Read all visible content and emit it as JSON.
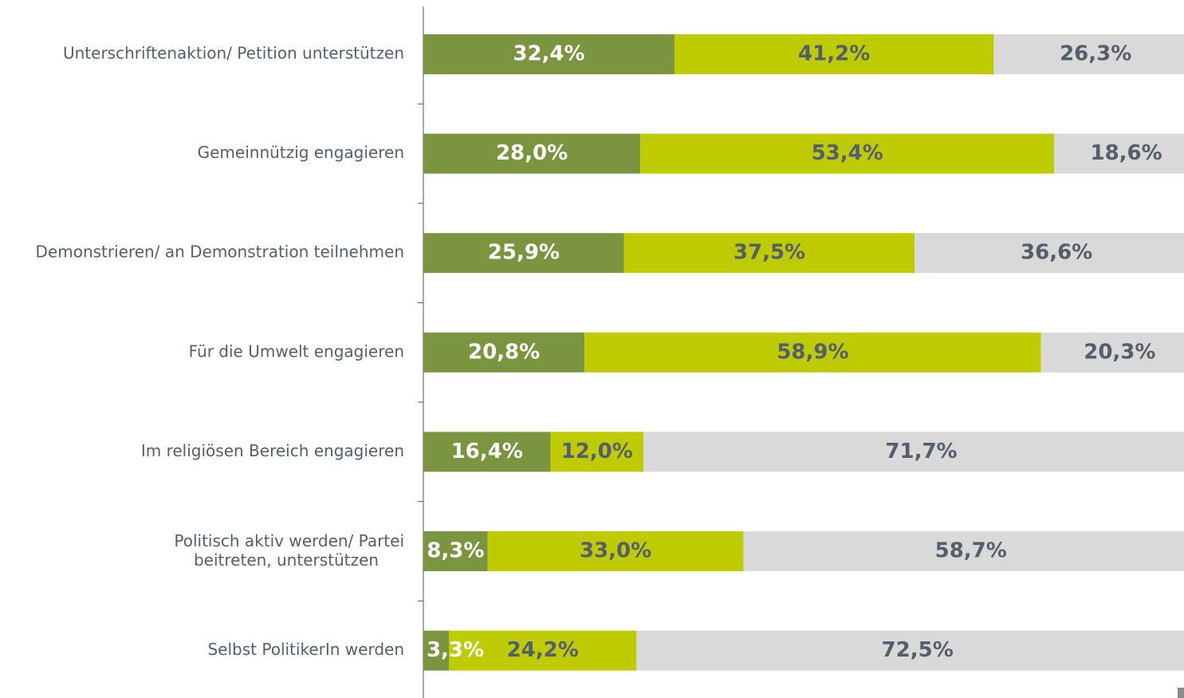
{
  "chart_data": {
    "type": "stacked-bar",
    "orientation": "horizontal",
    "categories": [
      "Unterschriftenaktion/ Petition unterstützen",
      "Gemeinnützig engagieren",
      "Demonstrieren/ an Demonstration teilnehmen",
      "Für die Umwelt engagieren",
      "Im religiösen Bereich engagieren",
      [
        "Politisch aktiv werden/ Partei",
        "beitreten, unterstützen"
      ],
      "Selbst PolitikerIn werden"
    ],
    "series": [
      {
        "color": "#7a9440",
        "label_color": "#ffffff",
        "values": [
          32.4,
          28.0,
          25.9,
          20.8,
          16.4,
          8.3,
          3.3
        ],
        "value_labels": [
          "32,4%",
          "28,0%",
          "25,9%",
          "20,8%",
          "16,4%",
          "8,3%",
          "3,3%"
        ]
      },
      {
        "color": "#becb00",
        "label_color": "#555f6b",
        "values": [
          41.2,
          53.4,
          37.5,
          58.9,
          12.0,
          33.0,
          24.2
        ],
        "value_labels": [
          "41,2%",
          "53,4%",
          "37,5%",
          "58,9%",
          "12,0%",
          "33,0%",
          "24,2%"
        ]
      },
      {
        "color": "#d9d9d9",
        "label_color": "#555f6b",
        "values": [
          26.3,
          18.6,
          36.6,
          20.3,
          71.7,
          58.7,
          72.5
        ],
        "value_labels": [
          "26,3%",
          "18,6%",
          "36,6%",
          "20,3%",
          "71,7%",
          "58,7%",
          "72,5%"
        ]
      }
    ],
    "xlim": [
      0,
      100
    ]
  }
}
